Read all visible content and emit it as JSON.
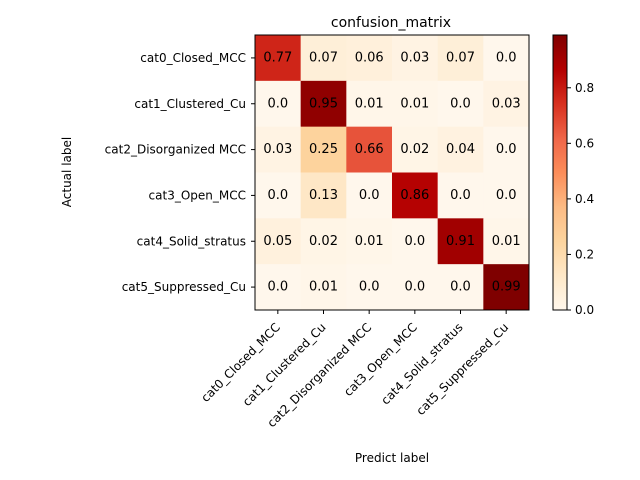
{
  "chart_data": {
    "type": "heatmap",
    "title": "confusion_matrix",
    "xlabel": "Predict label",
    "ylabel": "Actual label",
    "x_categories": [
      "cat0_Closed_MCC",
      "cat1_Clustered_Cu",
      "cat2_Disorganized MCC",
      "cat3_Open_MCC",
      "cat4_Solid_stratus",
      "cat5_Suppressed_Cu"
    ],
    "y_categories": [
      "cat0_Closed_MCC",
      "cat1_Clustered_Cu",
      "cat2_Disorganized MCC",
      "cat3_Open_MCC",
      "cat4_Solid_stratus",
      "cat5_Suppressed_Cu"
    ],
    "values": [
      [
        0.77,
        0.07,
        0.06,
        0.03,
        0.07,
        0.0
      ],
      [
        0.0,
        0.95,
        0.01,
        0.01,
        0.0,
        0.03
      ],
      [
        0.03,
        0.25,
        0.66,
        0.02,
        0.04,
        0.0
      ],
      [
        0.0,
        0.13,
        0.0,
        0.86,
        0.0,
        0.0
      ],
      [
        0.05,
        0.02,
        0.01,
        0.0,
        0.91,
        0.01
      ],
      [
        0.0,
        0.01,
        0.0,
        0.0,
        0.0,
        0.99
      ]
    ],
    "cell_labels": [
      [
        "0.77",
        "0.07",
        "0.06",
        "0.03",
        "0.07",
        "0.0"
      ],
      [
        "0.0",
        "0.95",
        "0.01",
        "0.01",
        "0.0",
        "0.03"
      ],
      [
        "0.03",
        "0.25",
        "0.66",
        "0.02",
        "0.04",
        "0.0"
      ],
      [
        "0.0",
        "0.13",
        "0.0",
        "0.86",
        "0.0",
        "0.0"
      ],
      [
        "0.05",
        "0.02",
        "0.01",
        "0.0",
        "0.91",
        "0.01"
      ],
      [
        "0.0",
        "0.01",
        "0.0",
        "0.0",
        "0.0",
        "0.99"
      ]
    ],
    "colormap": "OrRd",
    "colorbar": {
      "range": [
        0.0,
        0.99
      ],
      "ticks": [
        0.0,
        0.2,
        0.4,
        0.6,
        0.8
      ],
      "tick_labels": [
        "0.0",
        "0.2",
        "0.4",
        "0.6",
        "0.8"
      ]
    },
    "grid": false
  }
}
